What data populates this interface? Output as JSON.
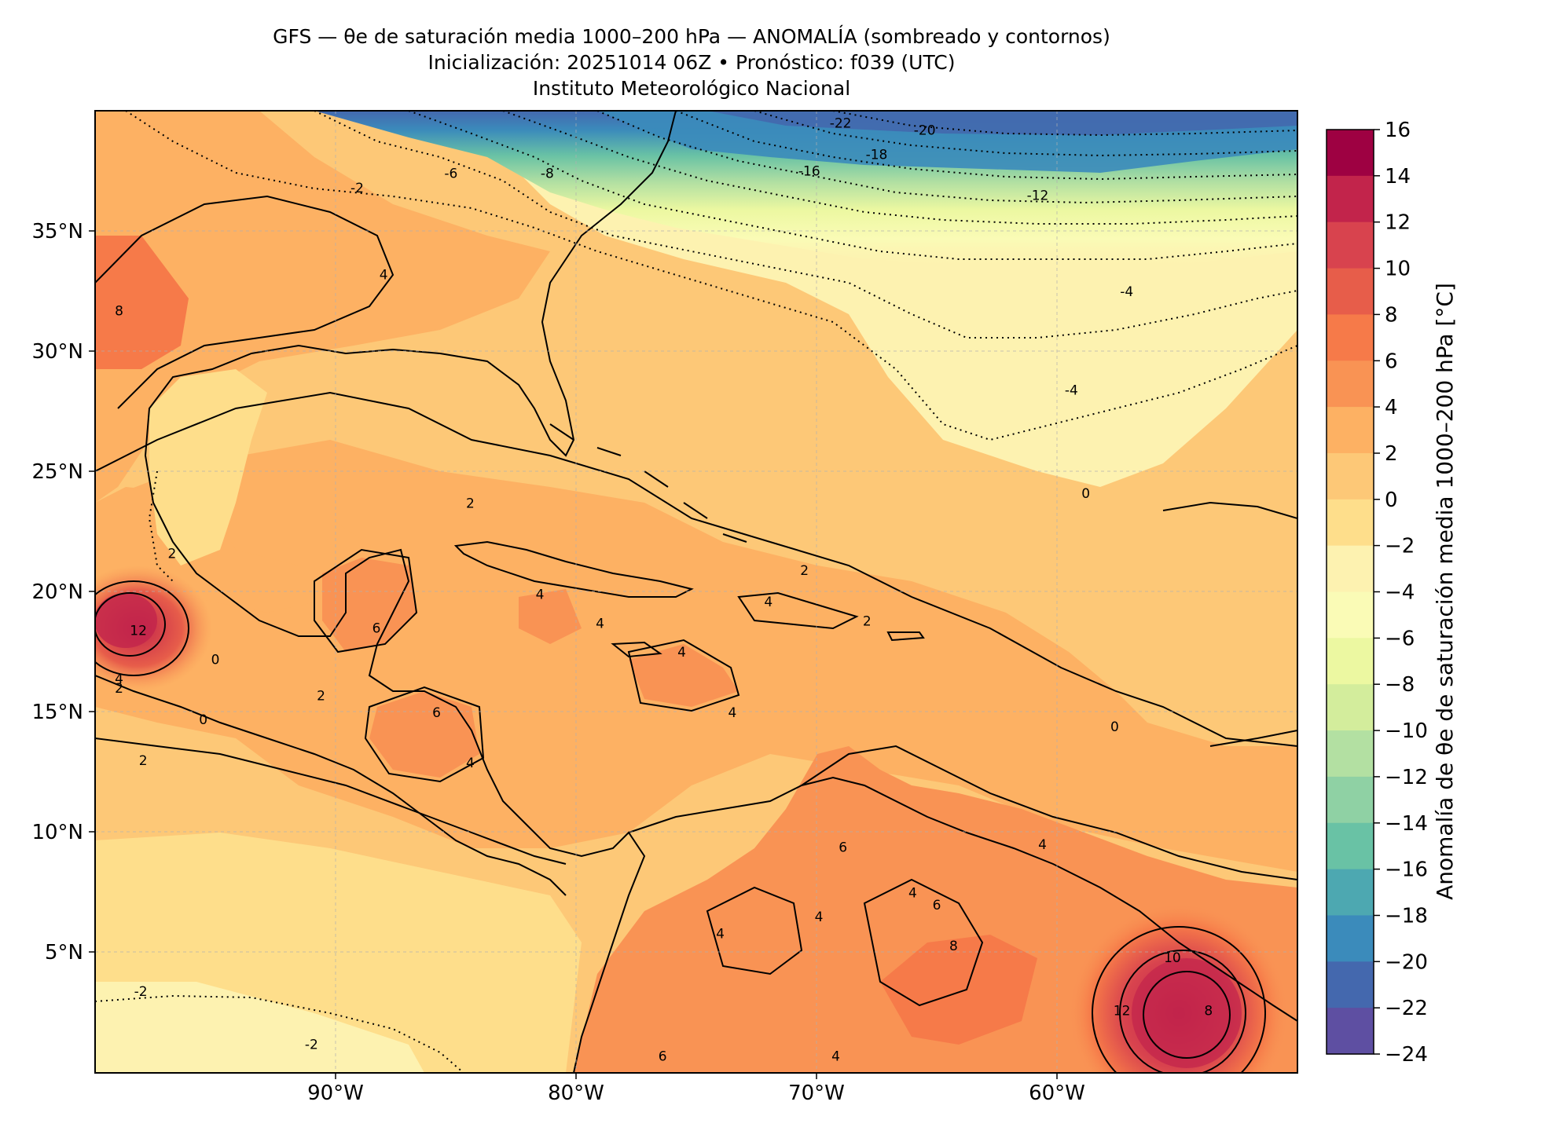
{
  "header": {
    "title": "GFS — θe de saturación media 1000–200 hPa — ANOMALÍA (sombreado y contornos)",
    "subtitle": "Inicialización: 20251014 06Z   •   Pronóstico: f039 (UTC)",
    "institution": "Instituto Meteorológico Nacional"
  },
  "map": {
    "lon_range": [
      -100,
      -50
    ],
    "lat_range": [
      0,
      40
    ],
    "lon_ticks": [
      "90°W",
      "80°W",
      "70°W",
      "60°W"
    ],
    "lat_ticks": [
      "35°N",
      "30°N",
      "25°N",
      "20°N",
      "15°N",
      "10°N",
      "5°N"
    ],
    "gridlines": true,
    "contour_labels": [
      {
        "text": "-22",
        "lon": -69,
        "lat": 39.3
      },
      {
        "text": "-20",
        "lon": -65.5,
        "lat": 39
      },
      {
        "text": "-18",
        "lon": -67.5,
        "lat": 38
      },
      {
        "text": "-16",
        "lon": -70.3,
        "lat": 37.3
      },
      {
        "text": "-12",
        "lon": -60.8,
        "lat": 36.3
      },
      {
        "text": "-6",
        "lon": -85.2,
        "lat": 37.2
      },
      {
        "text": "-8",
        "lon": -81.2,
        "lat": 37.2
      },
      {
        "text": "-2",
        "lon": -89.1,
        "lat": 36.6
      },
      {
        "text": "-4",
        "lon": -57.1,
        "lat": 32.3
      },
      {
        "text": "-4",
        "lon": -59.4,
        "lat": 28.2
      },
      {
        "text": "4",
        "lon": -88,
        "lat": 33
      },
      {
        "text": "8",
        "lon": -99,
        "lat": 31.5
      },
      {
        "text": "0",
        "lon": -58.8,
        "lat": 23.9
      },
      {
        "text": "2",
        "lon": -84.4,
        "lat": 23.5
      },
      {
        "text": "2",
        "lon": -96.8,
        "lat": 21.4
      },
      {
        "text": "2",
        "lon": -70.5,
        "lat": 20.7
      },
      {
        "text": "4",
        "lon": -81.5,
        "lat": 19.7
      },
      {
        "text": "6",
        "lon": -88.3,
        "lat": 18.3
      },
      {
        "text": "4",
        "lon": -79,
        "lat": 18.5
      },
      {
        "text": "4",
        "lon": -72,
        "lat": 19.4
      },
      {
        "text": "2",
        "lon": -67.9,
        "lat": 18.6
      },
      {
        "text": "4",
        "lon": -75.6,
        "lat": 17.3
      },
      {
        "text": "4",
        "lon": -73.5,
        "lat": 14.8
      },
      {
        "text": "6",
        "lon": -85.8,
        "lat": 14.8
      },
      {
        "text": "12",
        "lon": -98.2,
        "lat": 18.2
      },
      {
        "text": "4",
        "lon": -99,
        "lat": 16.2
      },
      {
        "text": "0",
        "lon": -95,
        "lat": 17
      },
      {
        "text": "2",
        "lon": -99,
        "lat": 15.8
      },
      {
        "text": "2",
        "lon": -90.6,
        "lat": 15.5
      },
      {
        "text": "0",
        "lon": -95.5,
        "lat": 14.5
      },
      {
        "text": "2",
        "lon": -98,
        "lat": 12.8
      },
      {
        "text": "4",
        "lon": -84.4,
        "lat": 12.7
      },
      {
        "text": "0",
        "lon": -57.6,
        "lat": 14.2
      },
      {
        "text": "6",
        "lon": -68.9,
        "lat": 9.2
      },
      {
        "text": "4",
        "lon": -60.6,
        "lat": 9.3
      },
      {
        "text": "4",
        "lon": -66,
        "lat": 7.3
      },
      {
        "text": "4",
        "lon": -69.9,
        "lat": 6.3
      },
      {
        "text": "4",
        "lon": -74,
        "lat": 5.6
      },
      {
        "text": "6",
        "lon": -65,
        "lat": 6.8
      },
      {
        "text": "8",
        "lon": -64.3,
        "lat": 5.1
      },
      {
        "text": "10",
        "lon": -55.2,
        "lat": 4.6
      },
      {
        "text": "12",
        "lon": -57.3,
        "lat": 2.4
      },
      {
        "text": "8",
        "lon": -53.7,
        "lat": 2.4
      },
      {
        "text": "-2",
        "lon": -98.1,
        "lat": 3.2
      },
      {
        "text": "-2",
        "lon": -91,
        "lat": 1
      },
      {
        "text": "6",
        "lon": -76.4,
        "lat": 0.5
      },
      {
        "text": "4",
        "lon": -69.2,
        "lat": 0.5
      }
    ]
  },
  "colorbar": {
    "label": "Anomalía de θe de saturación media 1000–200 hPa [°C]",
    "ticks": [
      "16",
      "14",
      "12",
      "10",
      "8",
      "6",
      "4",
      "2",
      "0",
      "−2",
      "−4",
      "−6",
      "−8",
      "−10",
      "−12",
      "−14",
      "−16",
      "−18",
      "−20",
      "−22",
      "−24"
    ],
    "bins_top_to_bottom": [
      "#9e0142",
      "#c2244b",
      "#d8434e",
      "#e75d4a",
      "#f67a49",
      "#f99354",
      "#fdb163",
      "#fdc877",
      "#fede8b",
      "#fdf2b0",
      "#fafbb6",
      "#ecf8a1",
      "#d3ed9c",
      "#b3e0a2",
      "#8fd1a4",
      "#69c2a5",
      "#4da8b1",
      "#3b8bbb",
      "#4468ae",
      "#5e4fa2"
    ]
  }
}
